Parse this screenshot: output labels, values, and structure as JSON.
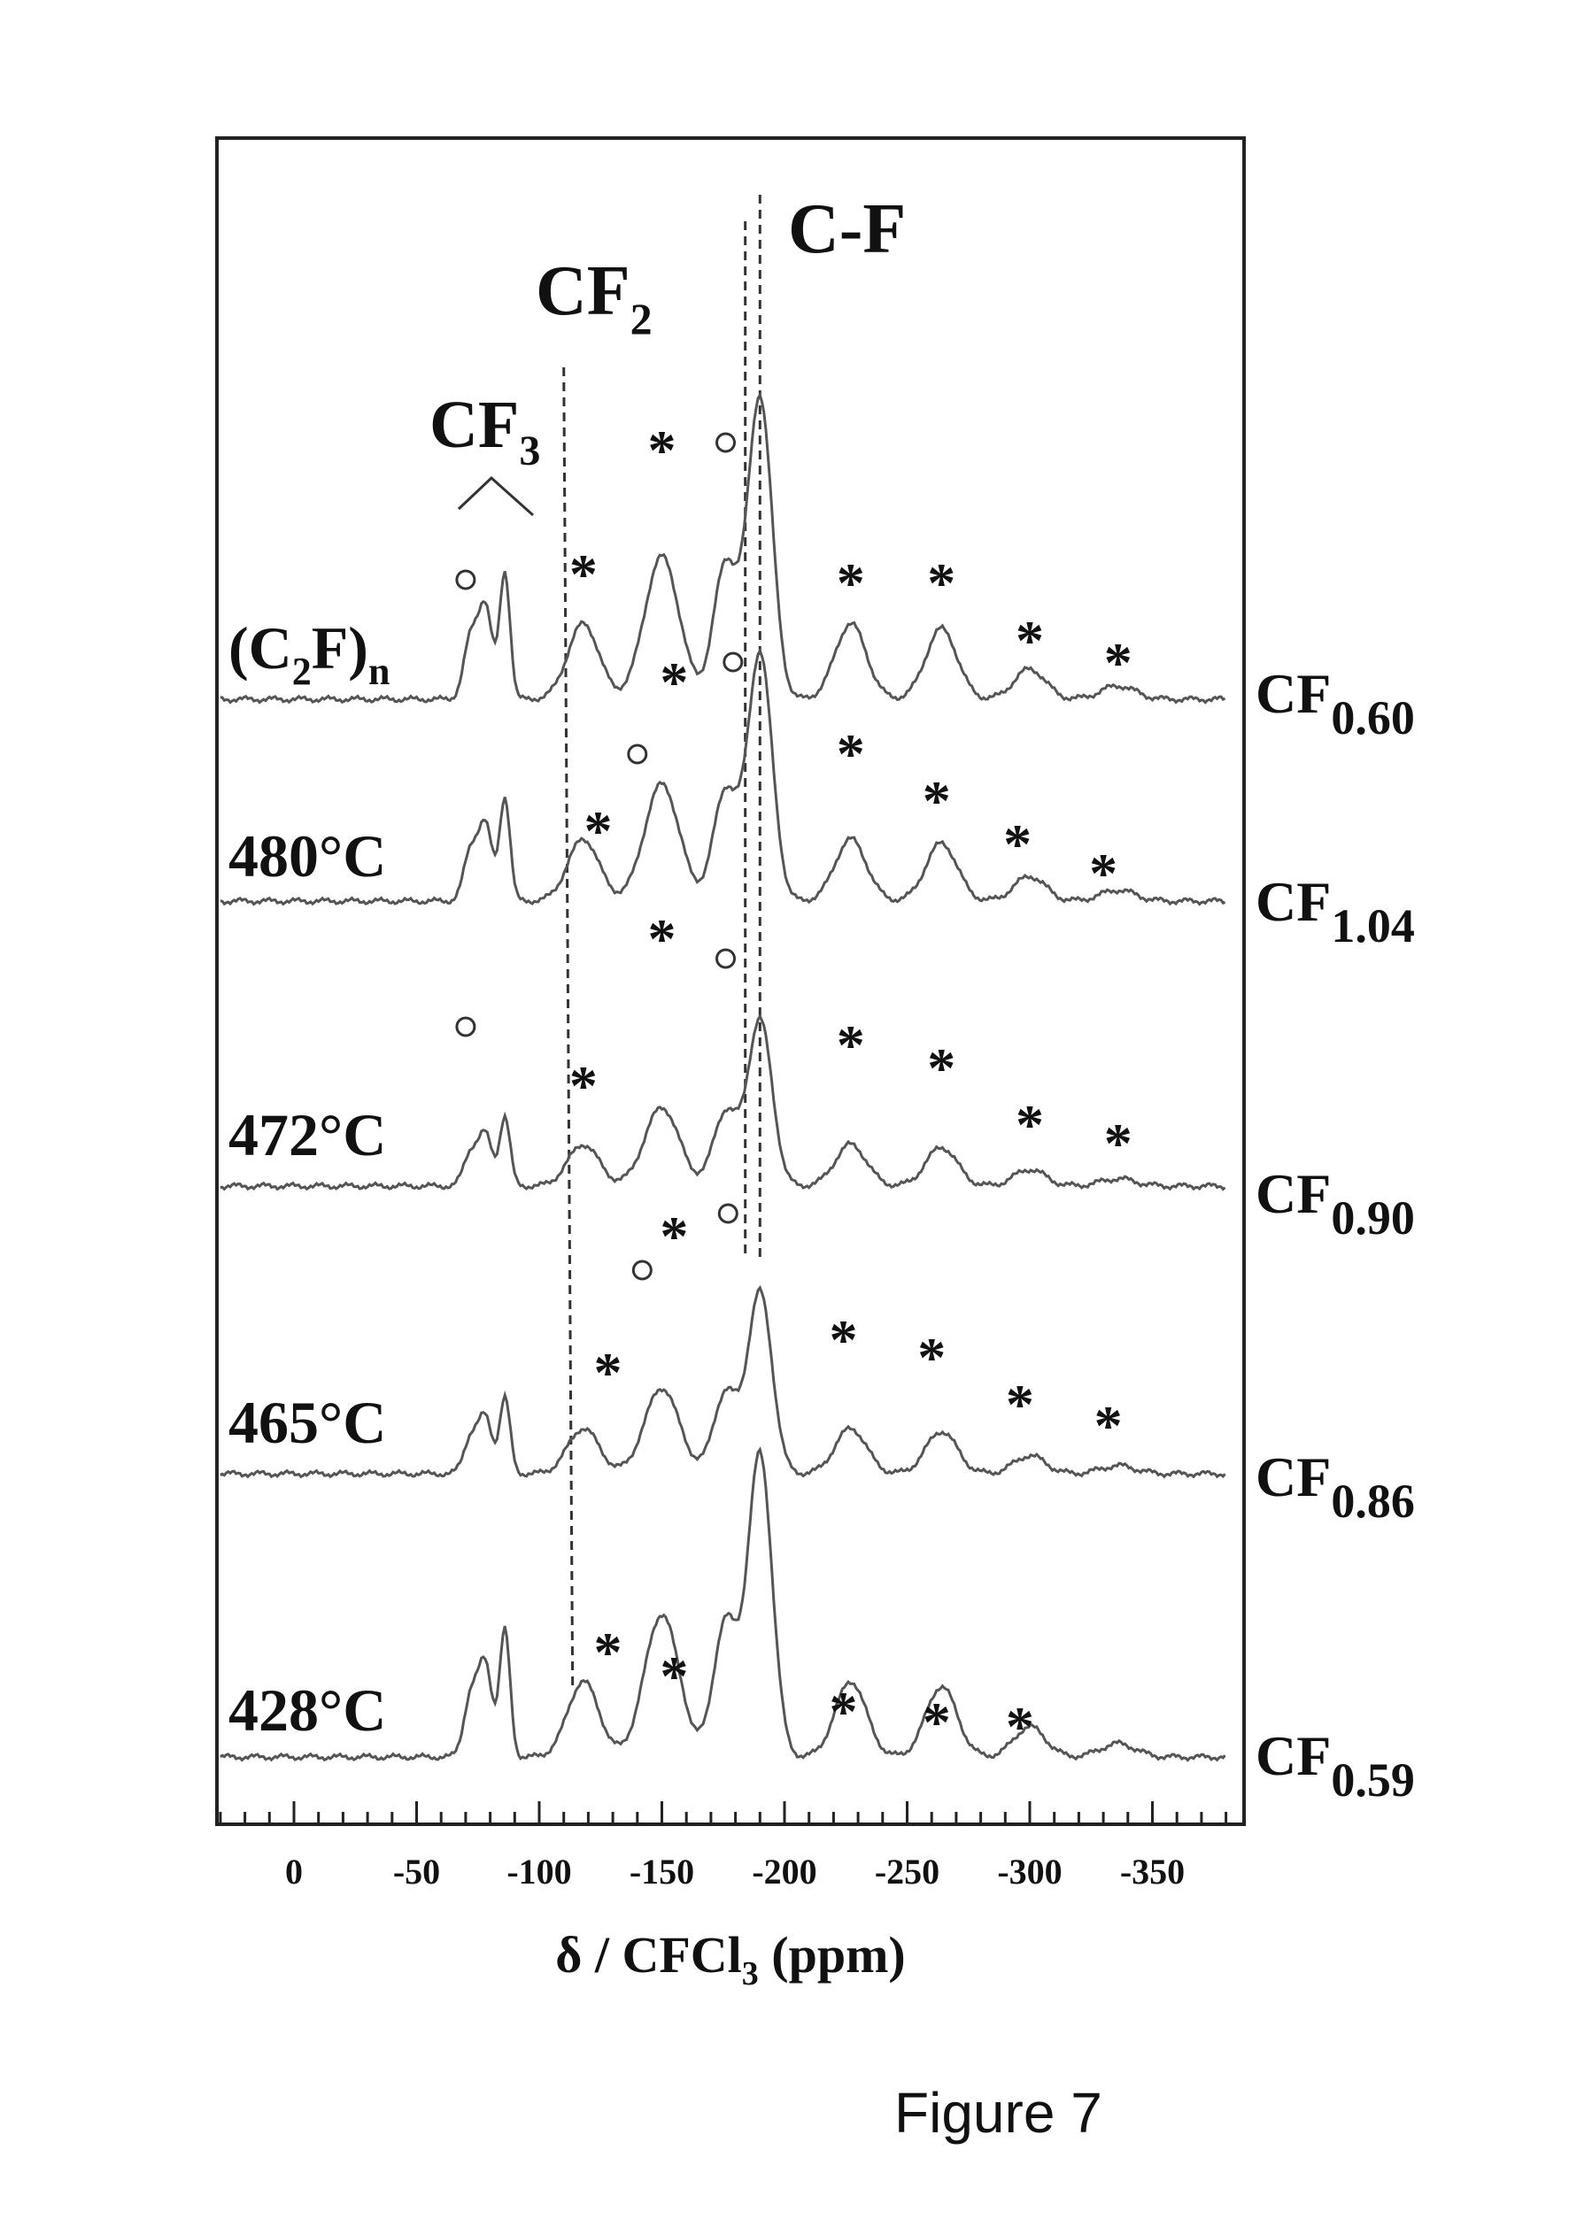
{
  "chart_data": {
    "type": "line",
    "xlabel": "δ / CFCl",
    "xlabel_sub": "3",
    "xlabel_unit": " (ppm)",
    "xlim": [
      30,
      -380
    ],
    "x_ticks": [
      {
        "value": 0,
        "label": "0"
      },
      {
        "value": -50,
        "label": "-50"
      },
      {
        "value": -100,
        "label": "-100"
      },
      {
        "value": -150,
        "label": "-150"
      },
      {
        "value": -200,
        "label": "-200"
      },
      {
        "value": -250,
        "label": "-250"
      },
      {
        "value": -300,
        "label": "-300"
      },
      {
        "value": -350,
        "label": "-350"
      }
    ],
    "reference_lines": [
      {
        "label": "CF",
        "label_sub": "2",
        "x": -110
      },
      {
        "label": "C-F",
        "label_sub": "",
        "x": -190
      }
    ],
    "group_label": {
      "text": "CF",
      "sub": "3"
    },
    "series": [
      {
        "name": "(C",
        "name_sub": "2",
        "name_tail": "F)",
        "name_tail_sub": "n",
        "composition": "CF",
        "composition_sub": "0.60",
        "stars": [
          -118,
          -150,
          -227,
          -264,
          -300,
          -336
        ],
        "circles": [
          -70,
          -176
        ]
      },
      {
        "name": "480°C",
        "name_sub": "",
        "name_tail": "",
        "name_tail_sub": "",
        "composition": "CF",
        "composition_sub": "1.04",
        "stars": [
          -124,
          -155,
          -227,
          -262,
          -295,
          -330
        ],
        "circles": [
          -140,
          -179
        ]
      },
      {
        "name": "472°C",
        "name_sub": "",
        "name_tail": "",
        "name_tail_sub": "",
        "composition": "CF",
        "composition_sub": "0.90",
        "stars": [
          -118,
          -150,
          -227,
          -264,
          -300,
          -336
        ],
        "circles": [
          -70,
          -176
        ]
      },
      {
        "name": "465°C",
        "name_sub": "",
        "name_tail": "",
        "name_tail_sub": "",
        "composition": "CF",
        "composition_sub": "0.86",
        "stars": [
          -128,
          -155,
          -224,
          -260,
          -296,
          -332
        ],
        "circles": [
          -142,
          -177
        ]
      },
      {
        "name": "428°C",
        "name_sub": "",
        "name_tail": "",
        "name_tail_sub": "",
        "composition": "CF",
        "composition_sub": "0.59",
        "stars": [
          -128,
          -155,
          -224,
          -262,
          -296
        ],
        "circles": []
      }
    ]
  },
  "figure_caption": "Figure 7"
}
